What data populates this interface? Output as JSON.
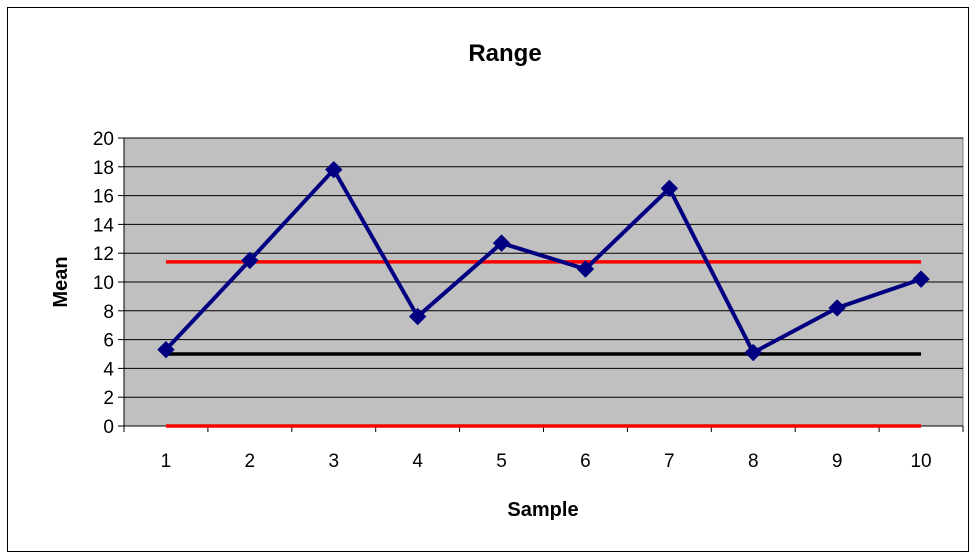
{
  "chart_data": {
    "type": "line",
    "title": "Range",
    "xlabel": "Sample",
    "ylabel": "Mean",
    "categories": [
      "1",
      "2",
      "3",
      "4",
      "5",
      "6",
      "7",
      "8",
      "9",
      "10"
    ],
    "ylim": [
      0,
      20
    ],
    "yticks": [
      "0",
      "2",
      "4",
      "6",
      "8",
      "10",
      "12",
      "14",
      "16",
      "18",
      "20"
    ],
    "grid": true,
    "legend": "none",
    "series": [
      {
        "values": [
          5.3,
          11.5,
          17.8,
          7.6,
          12.7,
          10.9,
          16.5,
          5.1,
          8.2,
          10.2
        ],
        "color": "#000080",
        "marker": "diamond"
      }
    ],
    "reference_lines": [
      {
        "value": 11.4,
        "color": "#ff0000"
      },
      {
        "value": 5.0,
        "color": "#000000"
      },
      {
        "value": 0.0,
        "color": "#ff0000"
      }
    ],
    "colors": {
      "plot_background": "#c0c0c0",
      "gridline": "#000000"
    }
  }
}
